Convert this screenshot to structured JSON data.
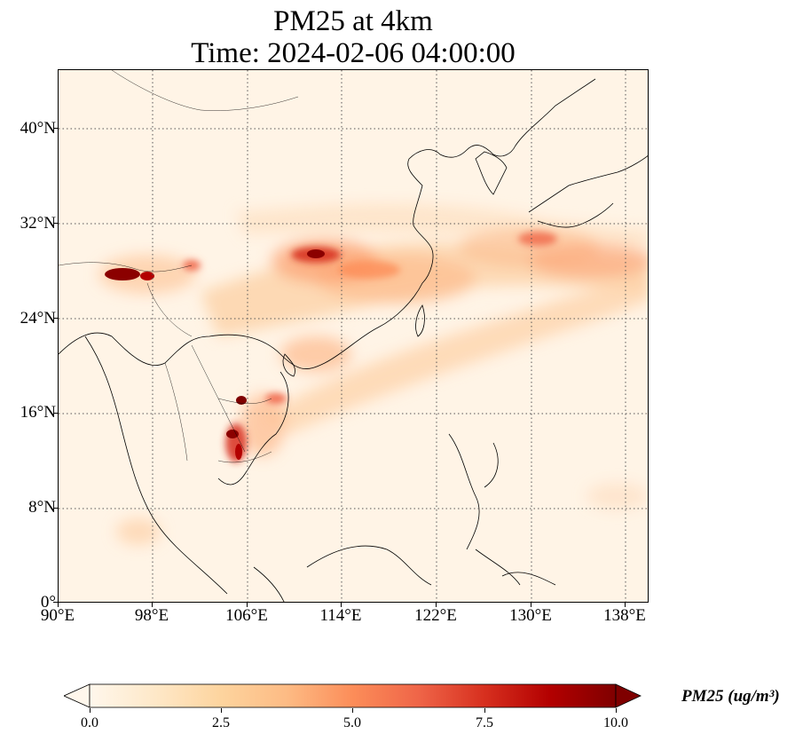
{
  "title_line1": "PM25 at 4km",
  "title_line2": "Time: 2024-02-06 04:00:00",
  "map": {
    "extent": {
      "lon": [
        90,
        140
      ],
      "lat": [
        0,
        45
      ]
    },
    "lat_ticks": [
      "40°N",
      "32°N",
      "24°N",
      "16°N",
      "8°N",
      "0°"
    ],
    "lon_ticks": [
      "90°E",
      "98°E",
      "106°E",
      "114°E",
      "122°E",
      "130°E",
      "138°E"
    ],
    "gridlines": true,
    "gridline_style": "dotted"
  },
  "colorbar": {
    "label": "PM25 (ug/m³)",
    "colormap": "OrRd",
    "range": [
      0.0,
      10.0
    ],
    "ticks": [
      "0.0",
      "2.5",
      "5.0",
      "7.5",
      "10.0"
    ],
    "extend": "both",
    "colors": [
      "#fff7ec",
      "#fee8c8",
      "#fdd49e",
      "#fdbb84",
      "#fc8d59",
      "#ef6548",
      "#d7301f",
      "#b30000",
      "#7f0000"
    ]
  }
}
